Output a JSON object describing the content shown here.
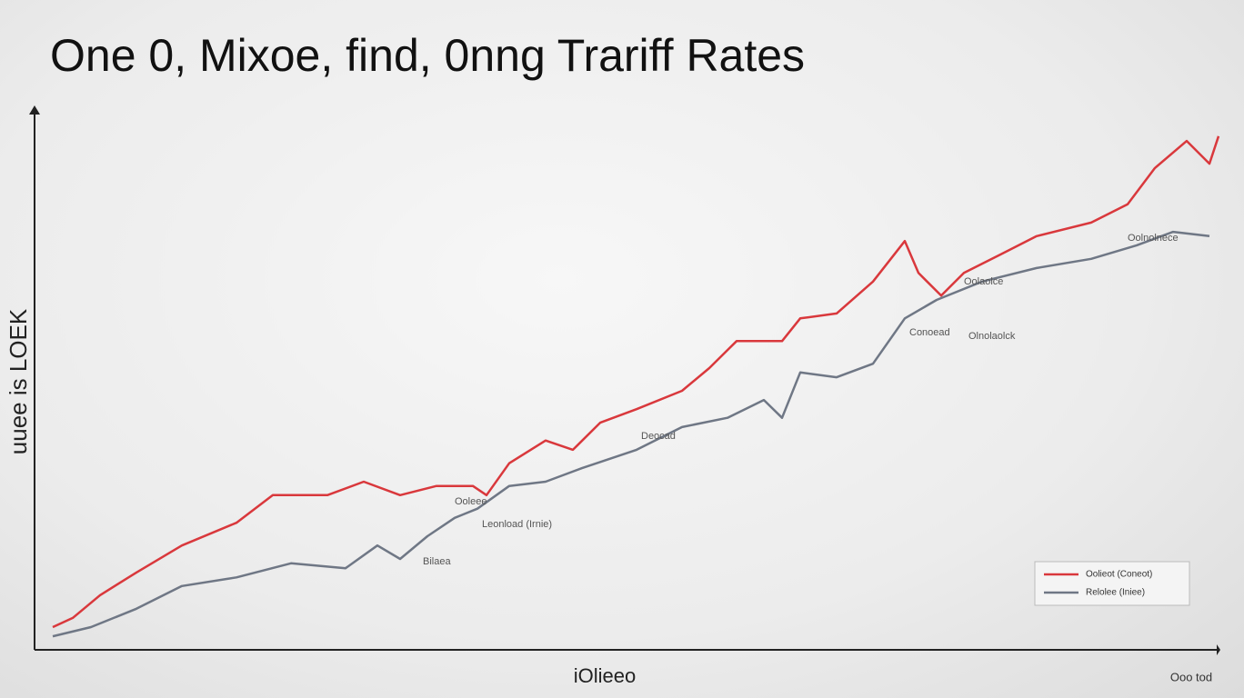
{
  "chart_data": {
    "type": "line",
    "title": "One 0, Mixoe, find, 0nng Trariff Rates",
    "y_label": "uuee is LOEK",
    "x_label": "iOlieeo",
    "corner_note": "Ooo tod",
    "xlim": [
      0,
      1302
    ],
    "ylim": [
      0,
      100
    ],
    "legend": "bottom-right",
    "series": [
      {
        "name": "Oolieot (Coneot)",
        "color": "#d9383c",
        "x": [
          20,
          42,
          72,
          112,
          162,
          222,
          262,
          322,
          362,
          402,
          442,
          482,
          497,
          522,
          562,
          592,
          622,
          662,
          712,
          742,
          772,
          822,
          842,
          882,
          922,
          957,
          972,
          997,
          1022,
          1062,
          1102,
          1162,
          1202,
          1232,
          1267,
          1292,
          1302
        ],
        "values": [
          4.2,
          5.9,
          10.1,
          14.3,
          19.3,
          23.5,
          28.6,
          28.6,
          31.1,
          28.6,
          30.3,
          30.3,
          28.6,
          34.5,
          38.7,
          37.0,
          42.0,
          44.5,
          47.9,
          52.1,
          57.1,
          57.1,
          61.3,
          62.2,
          68.1,
          75.6,
          69.7,
          65.5,
          69.7,
          73.1,
          76.5,
          79.0,
          82.4,
          89.1,
          94.1,
          89.9,
          95.0
        ]
      },
      {
        "name": "Relolee (Iniee)",
        "color": "#6f7785",
        "x": [
          20,
          62,
          112,
          162,
          222,
          282,
          342,
          377,
          402,
          432,
          462,
          487,
          522,
          562,
          602,
          662,
          712,
          762,
          802,
          822,
          842,
          882,
          922,
          957,
          992,
          1042,
          1102,
          1162,
          1212,
          1252,
          1292
        ],
        "values": [
          2.5,
          4.2,
          7.6,
          11.8,
          13.4,
          16.0,
          15.1,
          19.3,
          16.8,
          21.0,
          24.4,
          26.1,
          30.3,
          31.1,
          33.6,
          37.0,
          41.2,
          42.9,
          46.2,
          42.9,
          51.3,
          50.4,
          52.9,
          61.3,
          64.7,
          68.1,
          70.6,
          72.3,
          74.8,
          77.3,
          76.5
        ]
      }
    ],
    "annotations": [
      "Conoead",
      "Olnolaolck",
      "Deocad",
      "Leonload (Irnie)",
      "Bilaea",
      "Ooleee",
      "Oolaolce",
      "Oolnolnece"
    ]
  }
}
